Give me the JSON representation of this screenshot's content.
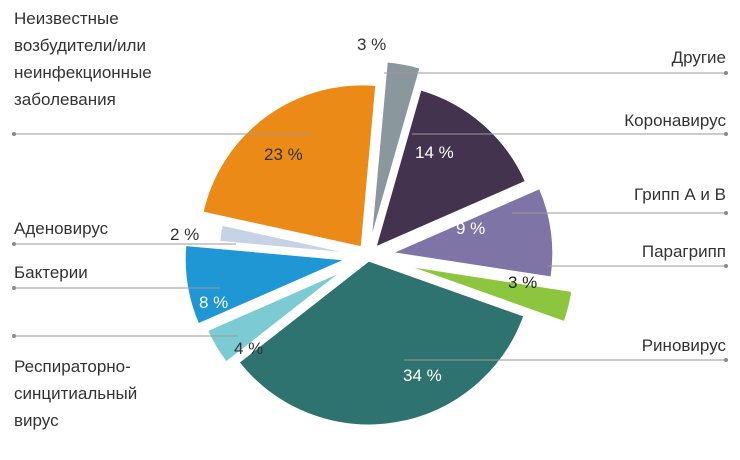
{
  "chart_data": {
    "type": "pie",
    "title": "",
    "slices": [
      {
        "label": "Другие",
        "value": 3,
        "value_label": "3 %",
        "color": "#8a979c"
      },
      {
        "label": "Коронавирус",
        "value": 14,
        "value_label": "14 %",
        "color": "#43334f"
      },
      {
        "label": "Грипп А и В",
        "value": 9,
        "value_label": "9 %",
        "color": "#7e74a6"
      },
      {
        "label": "Парагрипп",
        "value": 3,
        "value_label": "3 %",
        "color": "#8cc63f"
      },
      {
        "label": "Риновирус",
        "value": 34,
        "value_label": "34 %",
        "color": "#2f7370"
      },
      {
        "label": "Респираторно-синцитиальный вирус",
        "value": 4,
        "value_label": "4 %",
        "color": "#7ccbd3"
      },
      {
        "label": "Бактерии",
        "value": 8,
        "value_label": "8 %",
        "color": "#1f97d4"
      },
      {
        "label": "Аденовирус",
        "value": 2,
        "value_label": "2 %",
        "color": "#c6d3e6"
      },
      {
        "label": "Неизвестные возбудители/или неинфекционные заболевания",
        "value": 23,
        "value_label": "23 %",
        "color": "#ec8a17"
      }
    ]
  }
}
